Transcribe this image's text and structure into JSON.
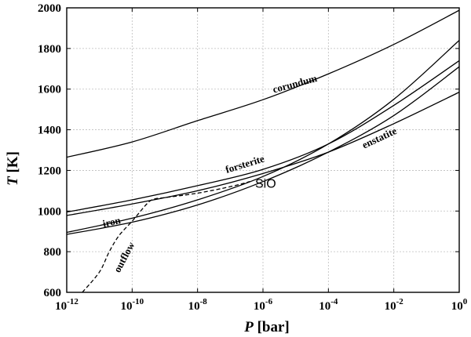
{
  "chart_data": {
    "type": "line",
    "xscale": "log",
    "xlim": [
      1e-12,
      1
    ],
    "ylim": [
      600,
      2000
    ],
    "grid": true,
    "xlabel": {
      "var": "P",
      "unit": " [bar]"
    },
    "ylabel": {
      "var": "T",
      "unit": " [K]"
    },
    "xticks": [
      {
        "base": "10",
        "exp": "-12",
        "value": 1e-12
      },
      {
        "base": "10",
        "exp": "-10",
        "value": 1e-10
      },
      {
        "base": "10",
        "exp": "-8",
        "value": 1e-08
      },
      {
        "base": "10",
        "exp": "-6",
        "value": 1e-06
      },
      {
        "base": "10",
        "exp": "-4",
        "value": 0.0001
      },
      {
        "base": "10",
        "exp": "-2",
        "value": 0.01
      },
      {
        "base": "10",
        "exp": "0",
        "value": 1
      }
    ],
    "yticks": [
      600,
      800,
      1000,
      1200,
      1400,
      1600,
      1800,
      2000
    ],
    "series": [
      {
        "name": "corundum",
        "style": "solid",
        "x": [
          1e-12,
          1e-10,
          1e-08,
          1e-06,
          0.0001,
          0.01,
          1
        ],
        "y": [
          1265,
          1340,
          1445,
          1548,
          1675,
          1820,
          1988
        ]
      },
      {
        "name": "forsterite",
        "style": "solid",
        "x": [
          1e-12,
          1e-10,
          1e-08,
          1e-06,
          0.0001,
          0.01,
          1
        ],
        "y": [
          995,
          1055,
          1125,
          1205,
          1330,
          1520,
          1740
        ]
      },
      {
        "name": "enstatite",
        "style": "solid",
        "x": [
          1e-12,
          1e-10,
          1e-08,
          1e-06,
          0.0001,
          0.01,
          1
        ],
        "y": [
          978,
          1035,
          1100,
          1185,
          1290,
          1430,
          1585
        ]
      },
      {
        "name": "iron",
        "style": "solid",
        "x": [
          1e-12,
          1e-10,
          1e-08,
          1e-06,
          0.0001,
          0.01,
          1
        ],
        "y": [
          895,
          965,
          1055,
          1170,
          1330,
          1550,
          1840
        ]
      },
      {
        "name": "SiO",
        "style": "solid",
        "x": [
          1e-12,
          1e-10,
          1e-08,
          1e-06,
          0.0001,
          0.01,
          1
        ],
        "y": [
          885,
          945,
          1030,
          1145,
          1290,
          1470,
          1710
        ]
      },
      {
        "name": "outflow",
        "style": "dashed",
        "x": [
          3e-12,
          1e-11,
          2e-11,
          4e-11,
          1e-10,
          3e-10,
          5e-10,
          1e-09,
          1e-08,
          1e-07,
          4e-07
        ],
        "y": [
          600,
          700,
          800,
          880,
          950,
          1040,
          1060,
          1066,
          1088,
          1120,
          1145
        ]
      }
    ],
    "annotations": [
      {
        "text": "corundum",
        "series": "corundum",
        "x": 1e-05,
        "y": 1610,
        "angle": -15,
        "cls": "curve-label"
      },
      {
        "text": "forsterite",
        "series": "forsterite",
        "x": 3e-07,
        "y": 1215,
        "angle": -17,
        "cls": "curve-label"
      },
      {
        "text": "enstatite",
        "series": "enstatite",
        "x": 0.004,
        "y": 1345,
        "angle": -25,
        "cls": "curve-label"
      },
      {
        "text": "iron",
        "series": "iron",
        "x": 2.5e-11,
        "y": 930,
        "angle": -13,
        "cls": "curve-label"
      },
      {
        "text": "SiO",
        "series": "SiO",
        "x": 1.2e-06,
        "y": 1115,
        "angle": 0,
        "cls": "sio-label"
      },
      {
        "text": "outflow",
        "series": "outflow",
        "x": 7e-11,
        "y": 765,
        "angle": -62,
        "cls": "curve-label"
      }
    ]
  }
}
